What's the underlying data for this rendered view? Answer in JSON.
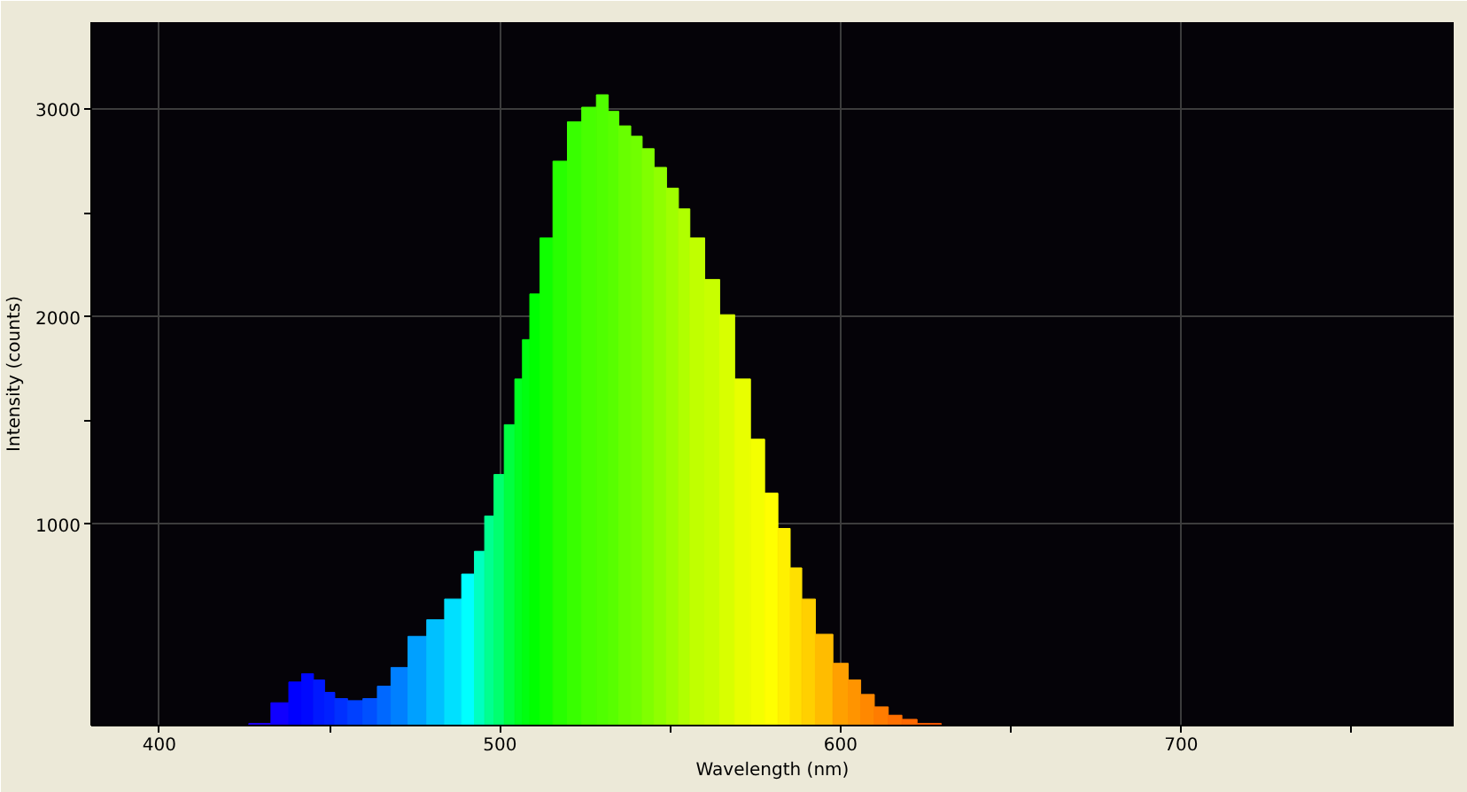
{
  "chart_data": {
    "type": "bar",
    "xlabel": "Wavelength (nm)",
    "ylabel": "Intensity (counts)",
    "x": [
      429.5,
      436,
      440,
      443.5,
      447,
      450,
      453,
      457.5,
      462,
      466,
      470,
      476,
      481,
      486.5,
      491,
      494,
      497,
      499.5,
      503,
      505.7,
      507.5,
      510,
      513.5,
      517.6,
      522,
      526,
      530.6,
      533,
      536.8,
      540,
      543.5,
      547,
      550.8,
      554,
      557.5,
      562.7,
      566.3,
      571.5,
      575.6,
      579.8,
      583.4,
      587,
      590.2,
      595,
      600.5,
      604,
      607.8,
      612,
      616,
      620,
      624.9,
      628
    ],
    "values": [
      40,
      140,
      240,
      280,
      250,
      190,
      160,
      150,
      160,
      220,
      310,
      460,
      540,
      640,
      760,
      870,
      1040,
      1240,
      1480,
      1700,
      1890,
      2110,
      2380,
      2750,
      2940,
      3010,
      3070,
      2990,
      2920,
      2870,
      2810,
      2720,
      2620,
      2520,
      2380,
      2180,
      2010,
      1700,
      1410,
      1150,
      980,
      790,
      640,
      470,
      330,
      250,
      180,
      120,
      80,
      60,
      40,
      40
    ],
    "colors": [
      "#2000ff",
      "#1000ff",
      "#0000ff",
      "#0008ff",
      "#0018ff",
      "#0020ff",
      "#0030ff",
      "#0040ff",
      "#0050ff",
      "#0068ff",
      "#0080ff",
      "#00a0ff",
      "#00c0ff",
      "#00e0ff",
      "#00ffff",
      "#00ffc0",
      "#00ff90",
      "#00ff70",
      "#00ff40",
      "#00ff20",
      "#00ff10",
      "#00ff00",
      "#10ff00",
      "#28ff00",
      "#38ff00",
      "#48ff00",
      "#50ff00",
      "#58ff00",
      "#68ff00",
      "#70ff00",
      "#80ff00",
      "#90ff00",
      "#a0ff00",
      "#b0ff00",
      "#c0ff00",
      "#c8ff00",
      "#d8ff00",
      "#e8ff00",
      "#f4ff00",
      "#ffff00",
      "#fff000",
      "#ffe000",
      "#ffd000",
      "#ffbc00",
      "#ffa000",
      "#ff9400",
      "#ff8800",
      "#ff7c00",
      "#ff7000",
      "#ff6800",
      "#ff6000",
      "#ff5800"
    ],
    "xlim": [
      380,
      780
    ],
    "ylim": [
      30,
      3420
    ],
    "xticks": [
      400,
      {
        "value": 450,
        "label": null
      },
      500,
      {
        "value": 550,
        "label": null
      },
      600,
      {
        "value": 650,
        "label": null
      },
      700,
      {
        "value": 750,
        "label": null
      }
    ],
    "yticks": [
      1000,
      {
        "value": 1500,
        "label": null
      },
      2000,
      {
        "value": 2500,
        "label": null
      },
      3000
    ],
    "grid": true
  }
}
